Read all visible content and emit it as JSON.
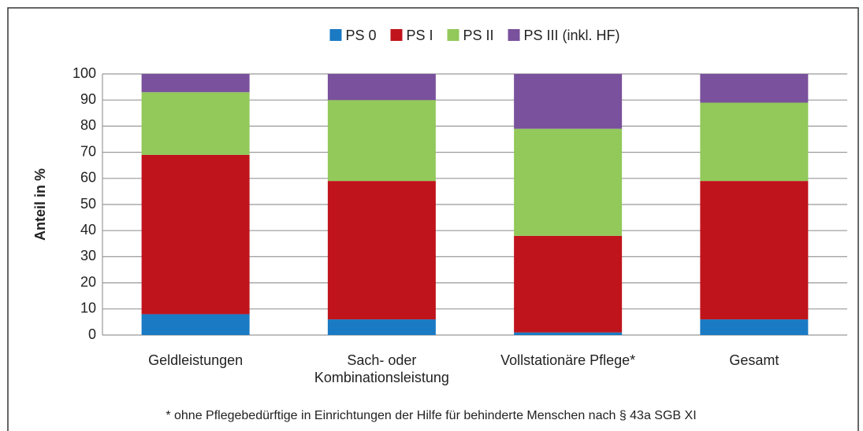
{
  "chart_data": {
    "type": "stacked_bar",
    "categories": [
      "Geldleistungen",
      "Sach- oder Kombinationsleistung",
      "Vollstationäre Pflege*",
      "Gesamt"
    ],
    "series": [
      {
        "name": "PS 0",
        "color": "#1a7ac4",
        "values": [
          8,
          6,
          1,
          6
        ]
      },
      {
        "name": "PS I",
        "color": "#c0141c",
        "values": [
          61,
          53,
          37,
          53
        ]
      },
      {
        "name": "PS II",
        "color": "#92c95a",
        "values": [
          24,
          31,
          41,
          30
        ]
      },
      {
        "name": "PS III (inkl. HF)",
        "color": "#7a519c",
        "values": [
          7,
          10,
          21,
          11
        ]
      }
    ],
    "y_label": "Anteil in %",
    "ylim": [
      0,
      100
    ],
    "yticks": [
      0,
      10,
      20,
      30,
      40,
      50,
      60,
      70,
      80,
      90,
      100
    ],
    "grid": true,
    "legend": "top",
    "footnote": "* ohne Pflegebedürftige in Einrichtungen der Hilfe für behinderte Menschen nach § 43a SGB XI"
  }
}
